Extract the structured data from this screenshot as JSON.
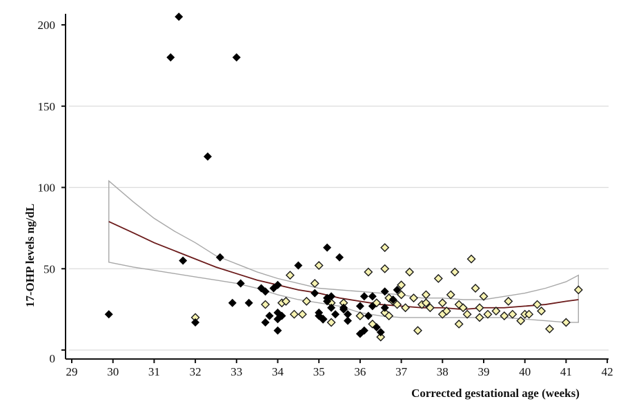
{
  "chart_data": {
    "type": "scatter",
    "title": "",
    "xlabel": "Corrected gestational age (weeks)",
    "ylabel": "17-OHP levels ng/dL",
    "xlim": [
      29,
      42
    ],
    "ylim": [
      0,
      200
    ],
    "x_ticks": [
      29,
      30,
      31,
      32,
      33,
      34,
      35,
      36,
      37,
      38,
      39,
      40,
      41,
      42
    ],
    "y_ticks": [
      0,
      50,
      100,
      150,
      200
    ],
    "grid": "horizontal light gridlines at 0, 50, 100, 150",
    "legend": null,
    "colors": {
      "series_black": "#000000",
      "series_yellow_fill": "#f6f2b0",
      "series_yellow_edge": "#1a1a1a",
      "fit_line": "#6b1a1a",
      "ci_band": "#a8a8a8",
      "gridline": "#dcdcdc",
      "axis": "#111111"
    },
    "series": [
      {
        "name": "black diamonds",
        "marker": "filled-diamond",
        "points": [
          [
            29.9,
            22
          ],
          [
            31.4,
            180
          ],
          [
            31.6,
            205
          ],
          [
            31.7,
            55
          ],
          [
            32.0,
            17
          ],
          [
            32.3,
            119
          ],
          [
            32.6,
            57
          ],
          [
            32.9,
            29
          ],
          [
            33.0,
            180
          ],
          [
            33.1,
            41
          ],
          [
            33.3,
            29
          ],
          [
            33.6,
            38
          ],
          [
            33.7,
            36
          ],
          [
            33.7,
            17
          ],
          [
            33.8,
            21
          ],
          [
            33.9,
            38
          ],
          [
            34.0,
            23
          ],
          [
            34.0,
            19
          ],
          [
            34.0,
            40
          ],
          [
            34.1,
            21
          ],
          [
            34.0,
            12
          ],
          [
            34.5,
            52
          ],
          [
            34.9,
            35
          ],
          [
            35.0,
            23
          ],
          [
            35.0,
            21
          ],
          [
            35.1,
            19
          ],
          [
            35.2,
            32
          ],
          [
            35.2,
            30
          ],
          [
            35.3,
            26
          ],
          [
            35.3,
            33
          ],
          [
            35.4,
            22
          ],
          [
            35.2,
            63
          ],
          [
            35.5,
            57
          ],
          [
            35.6,
            26
          ],
          [
            35.6,
            25
          ],
          [
            35.7,
            18
          ],
          [
            35.7,
            22
          ],
          [
            36.0,
            27
          ],
          [
            36.0,
            10
          ],
          [
            36.1,
            33
          ],
          [
            36.1,
            12
          ],
          [
            36.2,
            21
          ],
          [
            36.3,
            27
          ],
          [
            36.3,
            33
          ],
          [
            36.4,
            14
          ],
          [
            36.5,
            11
          ],
          [
            36.6,
            26
          ],
          [
            36.6,
            36
          ],
          [
            36.8,
            31
          ],
          [
            36.9,
            37
          ]
        ]
      },
      {
        "name": "yellow diamonds",
        "marker": "open-diamond-yellow",
        "points": [
          [
            32.0,
            20
          ],
          [
            33.7,
            28
          ],
          [
            34.1,
            29
          ],
          [
            34.2,
            30
          ],
          [
            34.3,
            46
          ],
          [
            34.4,
            22
          ],
          [
            34.6,
            22
          ],
          [
            34.7,
            30
          ],
          [
            34.9,
            41
          ],
          [
            35.0,
            52
          ],
          [
            35.1,
            19
          ],
          [
            35.3,
            29
          ],
          [
            35.3,
            17
          ],
          [
            35.6,
            29
          ],
          [
            36.0,
            21
          ],
          [
            36.2,
            48
          ],
          [
            36.3,
            16
          ],
          [
            36.4,
            29
          ],
          [
            36.5,
            8
          ],
          [
            36.6,
            63
          ],
          [
            36.6,
            50
          ],
          [
            36.6,
            23
          ],
          [
            36.7,
            32
          ],
          [
            36.7,
            21
          ],
          [
            36.8,
            30
          ],
          [
            36.9,
            28
          ],
          [
            37.0,
            40
          ],
          [
            37.0,
            34
          ],
          [
            37.1,
            26
          ],
          [
            37.2,
            48
          ],
          [
            37.3,
            32
          ],
          [
            37.4,
            12
          ],
          [
            37.5,
            28
          ],
          [
            37.6,
            29
          ],
          [
            37.6,
            34
          ],
          [
            37.7,
            26
          ],
          [
            37.9,
            44
          ],
          [
            38.0,
            22
          ],
          [
            38.0,
            29
          ],
          [
            38.1,
            24
          ],
          [
            38.2,
            34
          ],
          [
            38.3,
            48
          ],
          [
            38.4,
            16
          ],
          [
            38.4,
            28
          ],
          [
            38.5,
            26
          ],
          [
            38.6,
            22
          ],
          [
            38.7,
            56
          ],
          [
            38.8,
            38
          ],
          [
            38.9,
            20
          ],
          [
            38.9,
            26
          ],
          [
            39.0,
            33
          ],
          [
            39.1,
            22
          ],
          [
            39.3,
            24
          ],
          [
            39.5,
            21
          ],
          [
            39.6,
            30
          ],
          [
            39.7,
            22
          ],
          [
            39.9,
            18
          ],
          [
            40.0,
            22
          ],
          [
            40.1,
            22
          ],
          [
            40.3,
            28
          ],
          [
            40.4,
            24
          ],
          [
            40.6,
            13
          ],
          [
            41.0,
            17
          ],
          [
            41.3,
            37
          ]
        ]
      }
    ],
    "fit": {
      "name": "regression curve",
      "x": [
        29.9,
        30.5,
        31.0,
        31.5,
        32.0,
        32.5,
        33.0,
        33.5,
        34.0,
        34.5,
        35.0,
        35.5,
        36.0,
        36.5,
        37.0,
        37.5,
        38.0,
        38.5,
        39.0,
        39.5,
        40.0,
        40.5,
        41.0,
        41.3
      ],
      "y": [
        79,
        72,
        66,
        61,
        56,
        51,
        47,
        43,
        40,
        37,
        35,
        32,
        30,
        28,
        27,
        26,
        26,
        25,
        26,
        26,
        27,
        28,
        30,
        31
      ]
    },
    "ci_upper": {
      "x": [
        29.9,
        30.5,
        31.0,
        31.5,
        32.0,
        32.5,
        33.0,
        33.5,
        34.0,
        34.5,
        35.0,
        35.5,
        36.0,
        36.5,
        37.0,
        37.5,
        38.0,
        38.5,
        39.0,
        39.5,
        40.0,
        40.5,
        41.0,
        41.3
      ],
      "y": [
        104,
        91,
        81,
        73,
        66,
        58,
        53,
        48,
        44,
        41,
        38,
        37,
        36,
        35,
        34,
        32,
        32,
        31,
        31,
        33,
        35,
        38,
        42,
        46
      ]
    },
    "ci_lower": {
      "x": [
        29.9,
        30.5,
        31.0,
        31.5,
        32.0,
        32.5,
        33.0,
        33.5,
        34.0,
        34.5,
        35.0,
        35.5,
        36.0,
        36.5,
        37.0,
        37.5,
        38.0,
        38.5,
        39.0,
        39.5,
        40.0,
        40.5,
        41.0,
        41.3
      ],
      "y": [
        54,
        51,
        49,
        47,
        45,
        43,
        41,
        38,
        34,
        31,
        29,
        27,
        23,
        21,
        20,
        20,
        20,
        20,
        20,
        20,
        19,
        18,
        17,
        17
      ]
    }
  },
  "labels": {
    "ylabel": "17-OHP levels ng/dL",
    "xlabel": "Corrected gestational age (weeks)"
  }
}
